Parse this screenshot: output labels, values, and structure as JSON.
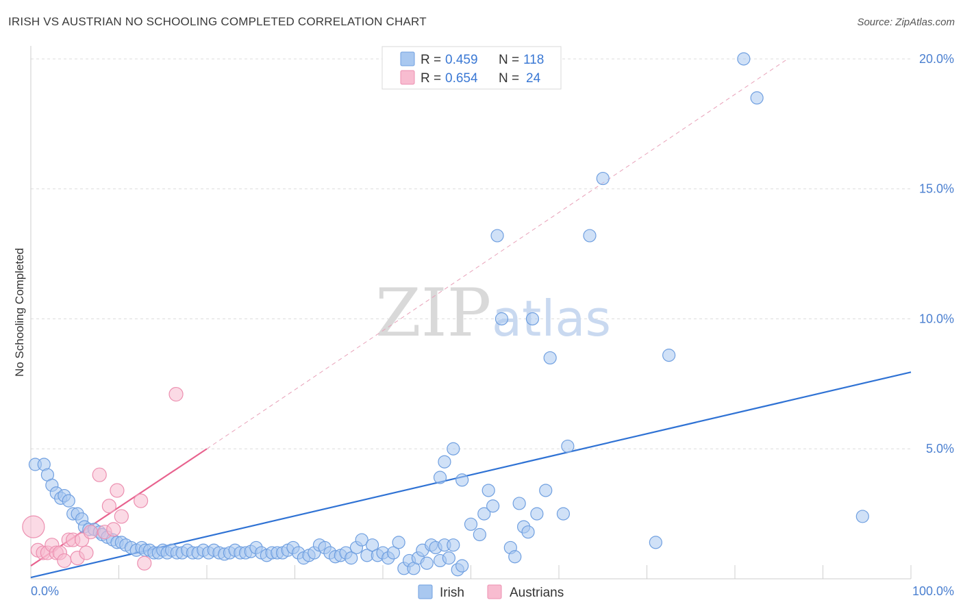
{
  "header": {
    "title": "IRISH VS AUSTRIAN NO SCHOOLING COMPLETED CORRELATION CHART",
    "source": "Source: ZipAtlas.com"
  },
  "chart_data": {
    "type": "scatter",
    "title": "IRISH VS AUSTRIAN NO SCHOOLING COMPLETED CORRELATION CHART",
    "xlabel": "",
    "ylabel": "No Schooling Completed",
    "xlim": [
      0,
      100
    ],
    "ylim": [
      0,
      20.5
    ],
    "x_tick_labels": [
      "0.0%",
      "100.0%"
    ],
    "y_ticks": [
      5,
      10,
      15,
      20
    ],
    "y_tick_labels": [
      "5.0%",
      "10.0%",
      "15.0%",
      "20.0%"
    ],
    "grid": true,
    "legend": {
      "position": "top-center",
      "entries": [
        {
          "series": "Irish",
          "r_label": "R =",
          "r_value": "0.459",
          "n_label": "N =",
          "n_value": "118",
          "color": "#a9c8f0",
          "stroke": "#6f9fe0"
        },
        {
          "series": "Austrians",
          "r_label": "R =",
          "r_value": "0.654",
          "n_label": "N =",
          "n_value": "24",
          "color": "#f8bcd0",
          "stroke": "#ec8fb0"
        }
      ]
    },
    "bottom_legend": [
      "Irish",
      "Austrians"
    ],
    "watermark": {
      "zip": "ZIP",
      "atlas": "atlas"
    },
    "series": [
      {
        "name": "Irish",
        "color": "#a9c8f0",
        "stroke": "#6f9fe0",
        "trend": {
          "x0": 0,
          "y0": 0.05,
          "x1": 100,
          "y1": 7.95,
          "color": "#2f72d4"
        },
        "points": [
          [
            0.5,
            4.4
          ],
          [
            1.5,
            4.4
          ],
          [
            1.9,
            4.0
          ],
          [
            2.4,
            3.6
          ],
          [
            2.9,
            3.3
          ],
          [
            3.4,
            3.1
          ],
          [
            3.8,
            3.2
          ],
          [
            4.3,
            3.0
          ],
          [
            4.8,
            2.5
          ],
          [
            5.3,
            2.5
          ],
          [
            5.8,
            2.3
          ],
          [
            6.1,
            2.0
          ],
          [
            6.6,
            1.9
          ],
          [
            7.2,
            1.9
          ],
          [
            7.8,
            1.8
          ],
          [
            8.1,
            1.7
          ],
          [
            8.7,
            1.6
          ],
          [
            9.3,
            1.5
          ],
          [
            9.8,
            1.4
          ],
          [
            10.3,
            1.4
          ],
          [
            10.8,
            1.3
          ],
          [
            11.4,
            1.2
          ],
          [
            12.0,
            1.1
          ],
          [
            12.6,
            1.2
          ],
          [
            13.0,
            1.1
          ],
          [
            13.5,
            1.1
          ],
          [
            14.0,
            1.0
          ],
          [
            14.5,
            1.0
          ],
          [
            15.0,
            1.1
          ],
          [
            15.5,
            1.0
          ],
          [
            16.0,
            1.1
          ],
          [
            16.6,
            1.0
          ],
          [
            17.2,
            1.0
          ],
          [
            17.8,
            1.1
          ],
          [
            18.4,
            1.0
          ],
          [
            19.0,
            1.0
          ],
          [
            19.6,
            1.1
          ],
          [
            20.2,
            1.0
          ],
          [
            20.8,
            1.1
          ],
          [
            21.4,
            1.0
          ],
          [
            22.0,
            0.95
          ],
          [
            22.6,
            1.0
          ],
          [
            23.2,
            1.1
          ],
          [
            23.8,
            1.0
          ],
          [
            24.4,
            1.0
          ],
          [
            25.0,
            1.05
          ],
          [
            25.6,
            1.2
          ],
          [
            26.2,
            1.0
          ],
          [
            26.8,
            0.9
          ],
          [
            27.4,
            1.0
          ],
          [
            28.0,
            1.0
          ],
          [
            28.6,
            1.0
          ],
          [
            29.2,
            1.1
          ],
          [
            29.8,
            1.2
          ],
          [
            30.4,
            1.0
          ],
          [
            31.0,
            0.8
          ],
          [
            31.6,
            0.9
          ],
          [
            32.2,
            1.0
          ],
          [
            32.8,
            1.3
          ],
          [
            33.4,
            1.2
          ],
          [
            34.0,
            1.0
          ],
          [
            34.6,
            0.85
          ],
          [
            35.2,
            0.9
          ],
          [
            35.8,
            1.0
          ],
          [
            36.4,
            0.8
          ],
          [
            37.0,
            1.2
          ],
          [
            37.6,
            1.5
          ],
          [
            38.2,
            0.9
          ],
          [
            38.8,
            1.3
          ],
          [
            39.4,
            0.9
          ],
          [
            40.0,
            1.0
          ],
          [
            40.6,
            0.8
          ],
          [
            41.2,
            1.0
          ],
          [
            41.8,
            1.4
          ],
          [
            42.4,
            0.4
          ],
          [
            43.0,
            0.7
          ],
          [
            43.5,
            0.4
          ],
          [
            44.0,
            0.8
          ],
          [
            44.5,
            1.1
          ],
          [
            45.0,
            0.6
          ],
          [
            45.5,
            1.3
          ],
          [
            46.0,
            1.2
          ],
          [
            46.5,
            0.7
          ],
          [
            47.0,
            1.3
          ],
          [
            47.5,
            0.8
          ],
          [
            48.0,
            1.3
          ],
          [
            48.5,
            0.35
          ],
          [
            49.0,
            0.5
          ],
          [
            46.5,
            3.9
          ],
          [
            47.0,
            4.5
          ],
          [
            48.0,
            5.0
          ],
          [
            49.0,
            3.8
          ],
          [
            50.0,
            2.1
          ],
          [
            51.0,
            1.7
          ],
          [
            51.5,
            2.5
          ],
          [
            52.0,
            3.4
          ],
          [
            52.5,
            2.8
          ],
          [
            53.0,
            13.2
          ],
          [
            53.5,
            10.0
          ],
          [
            54.5,
            1.2
          ],
          [
            55.0,
            0.85
          ],
          [
            55.5,
            2.9
          ],
          [
            56.0,
            2.0
          ],
          [
            56.5,
            1.8
          ],
          [
            57.0,
            10.0
          ],
          [
            57.5,
            2.5
          ],
          [
            58.5,
            3.4
          ],
          [
            59.0,
            8.5
          ],
          [
            60.5,
            2.5
          ],
          [
            61.0,
            5.1
          ],
          [
            63.5,
            13.2
          ],
          [
            65.0,
            15.4
          ],
          [
            71.0,
            1.4
          ],
          [
            72.5,
            8.6
          ],
          [
            81.0,
            20.0
          ],
          [
            82.5,
            18.5
          ],
          [
            94.5,
            2.4
          ]
        ]
      },
      {
        "name": "Austrians",
        "color": "#f8bcd0",
        "stroke": "#ec8fb0",
        "trend": {
          "x0": 0,
          "y0": 0.5,
          "x1": 20,
          "y1": 5.0,
          "color": "#e8628e"
        },
        "trend_extension": {
          "x0": 20,
          "y0": 5.0,
          "x1": 86,
          "y1": 20.0
        },
        "points": [
          [
            0.3,
            2.0,
            16
          ],
          [
            0.8,
            1.1,
            10
          ],
          [
            1.4,
            1.0,
            10
          ],
          [
            1.9,
            1.0,
            10
          ],
          [
            2.4,
            1.3,
            10
          ],
          [
            2.9,
            1.0,
            10
          ],
          [
            3.3,
            1.0,
            10
          ],
          [
            3.8,
            0.7,
            10
          ],
          [
            4.3,
            1.5,
            10
          ],
          [
            4.8,
            1.5,
            10
          ],
          [
            5.3,
            0.8,
            10
          ],
          [
            5.8,
            1.5,
            10
          ],
          [
            6.3,
            1.0,
            10
          ],
          [
            6.8,
            1.8,
            10
          ],
          [
            7.8,
            4.0,
            10
          ],
          [
            8.4,
            1.8,
            10
          ],
          [
            8.9,
            2.8,
            10
          ],
          [
            9.4,
            1.9,
            10
          ],
          [
            9.8,
            3.4,
            10
          ],
          [
            10.3,
            2.4,
            10
          ],
          [
            12.5,
            3.0,
            10
          ],
          [
            12.9,
            0.6,
            10
          ],
          [
            16.5,
            7.1,
            10
          ]
        ]
      }
    ]
  }
}
